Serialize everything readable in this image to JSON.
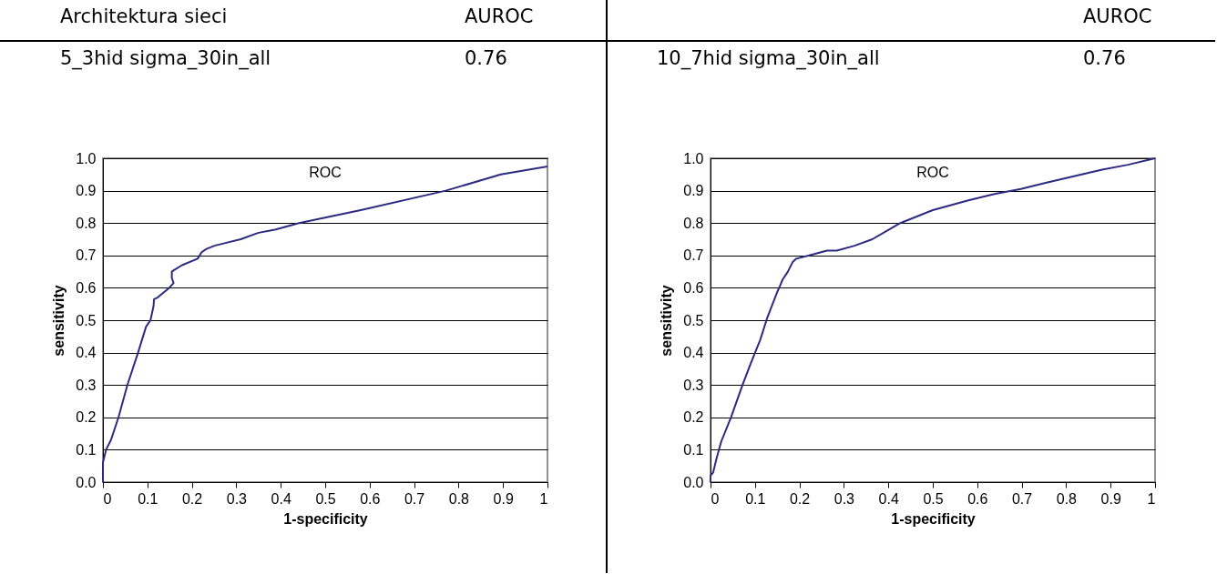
{
  "chart_data": [
    {
      "type": "line",
      "title": "ROC",
      "xlabel": "1-specificity",
      "ylabel": "sensitivity",
      "annotations": [
        "Architektura sieci",
        "AUROC",
        "5_3hid sigma_30in_all",
        "0.76"
      ],
      "xlim": [
        0,
        1
      ],
      "xticks": [
        0,
        0.1,
        0.2,
        0.3,
        0.4,
        0.5,
        0.6,
        0.7,
        0.8,
        0.9,
        1
      ],
      "ylim": [
        0,
        1
      ],
      "yticks": [
        {
          "value": 0,
          "label": "0.0"
        },
        {
          "value": 0.1,
          "label": "0.1"
        },
        {
          "value": 0.2,
          "label": "0.2"
        },
        {
          "value": 0.3,
          "label": "0.3"
        },
        {
          "value": 0.4,
          "label": "0.4"
        },
        {
          "value": 0.5,
          "label": "0.5"
        },
        {
          "value": 0.6,
          "label": "0.6"
        },
        {
          "value": 0.7,
          "label": "0.7"
        },
        {
          "value": 0.8,
          "label": "0.8"
        },
        {
          "value": 0.9,
          "label": "0.9"
        },
        {
          "value": 1,
          "label": "1.0"
        }
      ],
      "grid": "y",
      "series": [
        {
          "color": "#2b2b80",
          "x": [
            0,
            0,
            0.007,
            0.018,
            0.035,
            0.055,
            0.079,
            0.097,
            0.107,
            0.114,
            0.115,
            0.123,
            0.149,
            0.159,
            0.155,
            0.155,
            0.16,
            0.178,
            0.213,
            0.222,
            0.233,
            0.251,
            0.31,
            0.35,
            0.389,
            0.441,
            0.58,
            0.771,
            0.895,
            1
          ],
          "values": [
            0,
            0.06,
            0.1,
            0.13,
            0.2,
            0.3,
            0.4,
            0.48,
            0.5,
            0.545,
            0.565,
            0.57,
            0.6,
            0.615,
            0.63,
            0.65,
            0.655,
            0.67,
            0.69,
            0.71,
            0.72,
            0.73,
            0.75,
            0.77,
            0.78,
            0.8,
            0.84,
            0.9,
            0.95,
            0.975
          ]
        }
      ]
    },
    {
      "type": "line",
      "title": "ROC",
      "xlabel": "1-specificity",
      "ylabel": "sensitivity",
      "annotations": [
        "AUROC",
        "10_7hid sigma_30in_all",
        "0.76"
      ],
      "xlim": [
        0,
        1
      ],
      "xticks": [
        0,
        0.1,
        0.2,
        0.3,
        0.4,
        0.5,
        0.6,
        0.7,
        0.8,
        0.9,
        1
      ],
      "ylim": [
        0,
        1
      ],
      "yticks": [
        {
          "value": 0,
          "label": "0.0"
        },
        {
          "value": 0.1,
          "label": "0.1"
        },
        {
          "value": 0.2,
          "label": "0.2"
        },
        {
          "value": 0.3,
          "label": "0.3"
        },
        {
          "value": 0.4,
          "label": "0.4"
        },
        {
          "value": 0.5,
          "label": "0.5"
        },
        {
          "value": 0.6,
          "label": "0.6"
        },
        {
          "value": 0.7,
          "label": "0.7"
        },
        {
          "value": 0.8,
          "label": "0.8"
        },
        {
          "value": 0.9,
          "label": "0.9"
        },
        {
          "value": 1,
          "label": "1.0"
        }
      ],
      "grid": "y",
      "series": [
        {
          "color": "#2b2b80",
          "x": [
            0,
            0,
            0.006,
            0.013,
            0.024,
            0.046,
            0.072,
            0.09,
            0.112,
            0.127,
            0.151,
            0.156,
            0.162,
            0.174,
            0.185,
            0.193,
            0.222,
            0.262,
            0.284,
            0.324,
            0.364,
            0.427,
            0.5,
            0.58,
            0.639,
            0.698,
            0.756,
            0.881,
            0.939,
            1
          ],
          "values": [
            0,
            0.02,
            0.03,
            0.07,
            0.125,
            0.2,
            0.3,
            0.365,
            0.44,
            0.505,
            0.59,
            0.605,
            0.625,
            0.65,
            0.68,
            0.69,
            0.7,
            0.715,
            0.715,
            0.73,
            0.75,
            0.8,
            0.84,
            0.87,
            0.89,
            0.905,
            0.925,
            0.965,
            0.98,
            1
          ]
        }
      ]
    }
  ]
}
